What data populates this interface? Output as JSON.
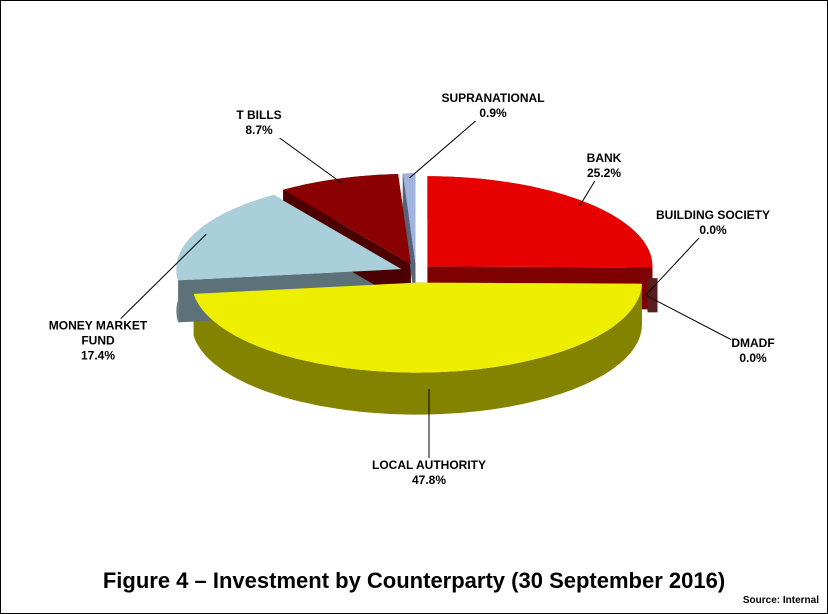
{
  "chart_data": {
    "type": "pie3d",
    "title": "Figure 4 – Investment by Counterparty (30 September 2016)",
    "source": "Source: Internal",
    "categories": [
      "BANK",
      "BUILDING SOCIETY",
      "DMADF",
      "LOCAL AUTHORITY",
      "MONEY MARKET FUND",
      "T BILLS",
      "SUPRANATIONAL"
    ],
    "values": [
      25.2,
      0.0,
      0.0,
      47.8,
      17.4,
      8.7,
      0.9
    ],
    "value_labels": [
      "25.2%",
      "0.0%",
      "0.0%",
      "47.8%",
      "17.4%",
      "8.7%",
      "0.9%"
    ],
    "colors": [
      "#e60000",
      "#2e6b2e",
      "#5a1c1c",
      "#eeee00",
      "#a9d0da",
      "#8b0000",
      "#9fb3dc"
    ]
  }
}
